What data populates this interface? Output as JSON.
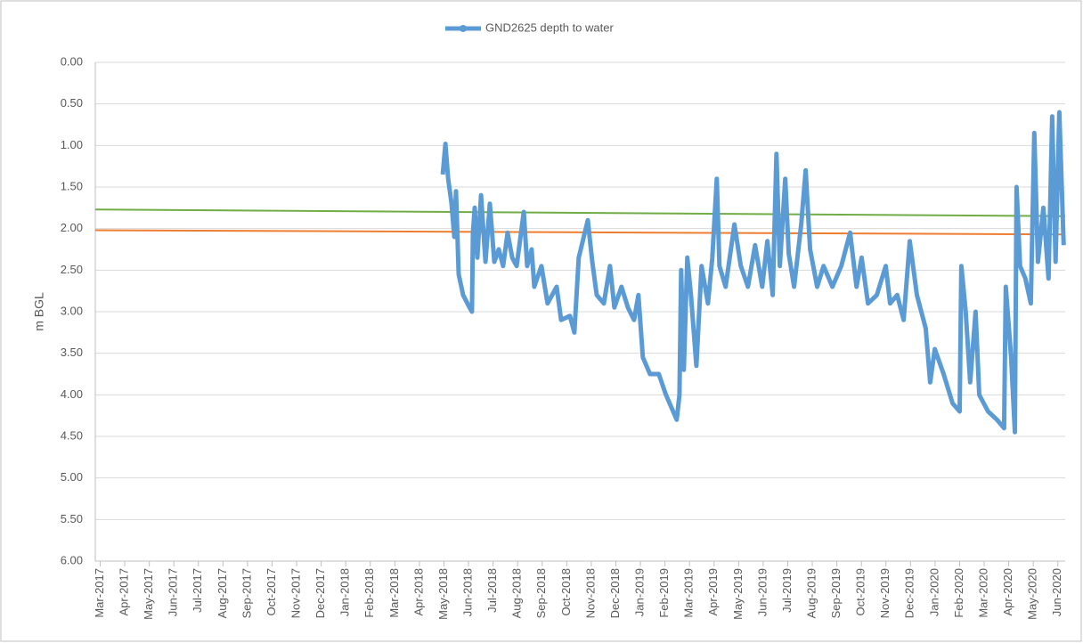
{
  "chart_data": {
    "type": "line",
    "y_label": "m BGL",
    "y_reversed": true,
    "ylim": [
      0,
      6
    ],
    "yticks": [
      {
        "value": 0,
        "label": "0.00"
      },
      {
        "value": 0.5,
        "label": "0.50"
      },
      {
        "value": 1,
        "label": "1.00"
      },
      {
        "value": 1.5,
        "label": "1.50"
      },
      {
        "value": 2,
        "label": "2.00"
      },
      {
        "value": 2.5,
        "label": "2.50"
      },
      {
        "value": 3,
        "label": "3.00"
      },
      {
        "value": 3.5,
        "label": "3.50"
      },
      {
        "value": 4,
        "label": "4.00"
      },
      {
        "value": 4.5,
        "label": "4.50"
      },
      {
        "value": 5,
        "label": "5.00"
      },
      {
        "value": 5.5,
        "label": "5.50"
      },
      {
        "value": 6,
        "label": "6.00"
      }
    ],
    "grid": true,
    "legend": "top",
    "xlim": [
      -0.2,
      39.3
    ],
    "xticks": [
      {
        "value": 0,
        "label": "Mar-2017"
      },
      {
        "value": 1,
        "label": "Apr-2017"
      },
      {
        "value": 2,
        "label": "May-2017"
      },
      {
        "value": 3,
        "label": "Jun-2017"
      },
      {
        "value": 4,
        "label": "Jul-2017"
      },
      {
        "value": 5,
        "label": "Aug-2017"
      },
      {
        "value": 6,
        "label": "Sep-2017"
      },
      {
        "value": 7,
        "label": "Oct-2017"
      },
      {
        "value": 8,
        "label": "Nov-2017"
      },
      {
        "value": 9,
        "label": "Dec-2017"
      },
      {
        "value": 10,
        "label": "Jan-2018"
      },
      {
        "value": 11,
        "label": "Feb-2018"
      },
      {
        "value": 12,
        "label": "Mar-2018"
      },
      {
        "value": 13,
        "label": "Apr-2018"
      },
      {
        "value": 14,
        "label": "May-2018"
      },
      {
        "value": 15,
        "label": "Jun-2018"
      },
      {
        "value": 16,
        "label": "Jul-2018"
      },
      {
        "value": 17,
        "label": "Aug-2018"
      },
      {
        "value": 18,
        "label": "Sep-2018"
      },
      {
        "value": 19,
        "label": "Oct-2018"
      },
      {
        "value": 20,
        "label": "Nov-2018"
      },
      {
        "value": 21,
        "label": "Dec-2018"
      },
      {
        "value": 22,
        "label": "Jan-2019"
      },
      {
        "value": 23,
        "label": "Feb-2019"
      },
      {
        "value": 24,
        "label": "Mar-2019"
      },
      {
        "value": 25,
        "label": "Apr-2019"
      },
      {
        "value": 26,
        "label": "May-2019"
      },
      {
        "value": 27,
        "label": "Jun-2019"
      },
      {
        "value": 28,
        "label": "Jul-2019"
      },
      {
        "value": 29,
        "label": "Aug-2019"
      },
      {
        "value": 30,
        "label": "Sep-2019"
      },
      {
        "value": 31,
        "label": "Oct-2019"
      },
      {
        "value": 32,
        "label": "Nov-2019"
      },
      {
        "value": 33,
        "label": "Dec-2019"
      },
      {
        "value": 34,
        "label": "Jan-2020"
      },
      {
        "value": 35,
        "label": "Feb-2020"
      },
      {
        "value": 36,
        "label": "Mar-2020"
      },
      {
        "value": 37,
        "label": "Apr-2020"
      },
      {
        "value": 38,
        "label": "May-2020"
      },
      {
        "value": 39,
        "label": "Jun-2020"
      }
    ],
    "series": [
      {
        "name": "GND2625 depth to water",
        "color": "#5b9bd5",
        "width": 5,
        "x": [
          13.95,
          14.06,
          14.17,
          14.31,
          14.42,
          14.49,
          14.6,
          14.78,
          15.04,
          15.14,
          15.18,
          15.25,
          15.36,
          15.51,
          15.69,
          15.87,
          16.05,
          16.23,
          16.41,
          16.59,
          16.78,
          16.96,
          17.25,
          17.39,
          17.57,
          17.68,
          17.97,
          18.22,
          18.59,
          18.77,
          19.13,
          19.31,
          19.49,
          19.86,
          20.04,
          20.22,
          20.51,
          20.76,
          20.94,
          21.23,
          21.49,
          21.74,
          21.92,
          22.1,
          22.39,
          22.75,
          23.04,
          23.48,
          23.59,
          23.66,
          23.77,
          23.91,
          24.06,
          24.28,
          24.49,
          24.75,
          24.93,
          25.11,
          25.22,
          25.47,
          25.83,
          26.09,
          26.38,
          26.67,
          26.96,
          27.17,
          27.39,
          27.54,
          27.68,
          27.9,
          28.04,
          28.26,
          28.55,
          28.73,
          28.91,
          29.2,
          29.46,
          29.82,
          30.18,
          30.54,
          30.8,
          31.01,
          31.27,
          31.63,
          31.99,
          32.17,
          32.46,
          32.72,
          32.97,
          33.26,
          33.62,
          33.8,
          33.99,
          34.35,
          34.71,
          35.0,
          35.07,
          35.25,
          35.43,
          35.65,
          35.8,
          36.16,
          36.52,
          36.81,
          36.88,
          37.1,
          37.25,
          37.32,
          37.46,
          37.68,
          37.9,
          38.04,
          38.19,
          38.41,
          38.62,
          38.77,
          38.91,
          39.06,
          39.24
        ],
        "values": [
          1.35,
          0.98,
          1.4,
          1.7,
          2.1,
          1.55,
          2.55,
          2.8,
          2.95,
          3.0,
          2.05,
          1.75,
          2.35,
          1.6,
          2.4,
          1.7,
          2.4,
          2.25,
          2.45,
          2.05,
          2.35,
          2.45,
          1.8,
          2.45,
          2.25,
          2.7,
          2.45,
          2.9,
          2.7,
          3.1,
          3.05,
          3.25,
          2.35,
          1.9,
          2.4,
          2.8,
          2.9,
          2.45,
          2.95,
          2.7,
          2.95,
          3.1,
          2.8,
          3.55,
          3.75,
          3.75,
          4.0,
          4.3,
          4.0,
          2.5,
          3.7,
          2.35,
          2.8,
          3.65,
          2.45,
          2.9,
          2.35,
          1.4,
          2.45,
          2.7,
          1.95,
          2.45,
          2.7,
          2.2,
          2.7,
          2.15,
          2.8,
          1.1,
          2.45,
          1.4,
          2.3,
          2.7,
          1.95,
          1.3,
          2.25,
          2.7,
          2.45,
          2.7,
          2.45,
          2.05,
          2.7,
          2.35,
          2.9,
          2.8,
          2.45,
          2.9,
          2.8,
          3.1,
          2.15,
          2.8,
          3.2,
          3.85,
          3.45,
          3.75,
          4.1,
          4.2,
          2.45,
          3.0,
          3.85,
          3.0,
          4.0,
          4.2,
          4.3,
          4.4,
          2.7,
          3.55,
          4.45,
          1.5,
          2.45,
          2.6,
          2.9,
          0.85,
          2.4,
          1.75,
          2.6,
          0.65,
          2.4,
          0.6,
          2.2
        ]
      },
      {
        "color": "#70ad47",
        "width": 2,
        "x": [
          -0.2,
          39.3
        ],
        "values": [
          1.77,
          1.85
        ]
      },
      {
        "color": "#ed7d31",
        "width": 2,
        "x": [
          -0.2,
          39.3
        ],
        "values": [
          2.02,
          2.07
        ]
      }
    ]
  }
}
